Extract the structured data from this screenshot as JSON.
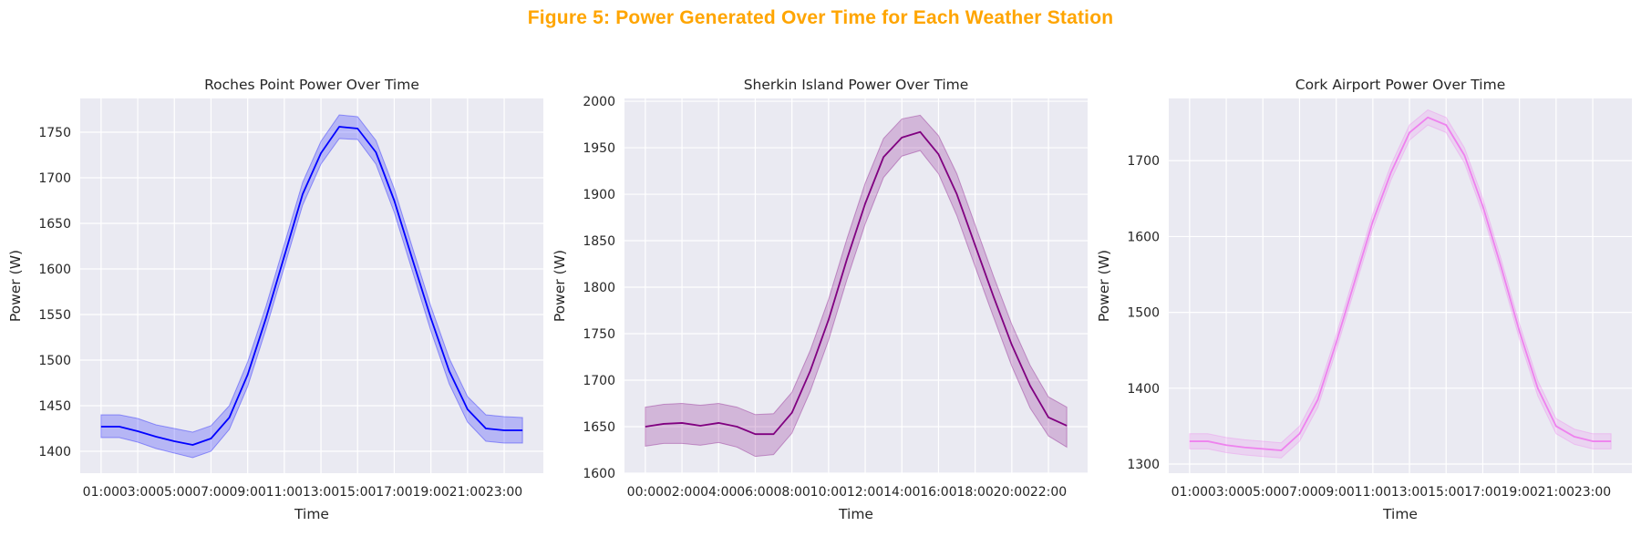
{
  "figure": {
    "title": "Figure 5: Power Generated Over Time for Each Weather Station",
    "title_color": "#ffa500",
    "background": "#eaeaf2"
  },
  "chart_data": [
    {
      "type": "line",
      "title": "Roches Point Power Over Time",
      "xlabel": "Time",
      "ylabel": "Power (W)",
      "color": "#0000ff",
      "band": "confidence interval",
      "x": [
        "01:00",
        "02:00",
        "03:00",
        "04:00",
        "05:00",
        "06:00",
        "07:00",
        "08:00",
        "09:00",
        "10:00",
        "11:00",
        "12:00",
        "13:00",
        "14:00",
        "15:00",
        "16:00",
        "17:00",
        "18:00",
        "19:00",
        "20:00",
        "21:00",
        "22:00",
        "23:00",
        "24:00"
      ],
      "x_tick_labels": [
        "01:00",
        "03:00",
        "05:00",
        "07:00",
        "09:00",
        "11:00",
        "13:00",
        "15:00",
        "17:00",
        "19:00",
        "21:00",
        "23:00"
      ],
      "y": [
        1427,
        1427,
        1422,
        1416,
        1411,
        1407,
        1414,
        1437,
        1484,
        1546,
        1614,
        1682,
        1727,
        1756,
        1754,
        1728,
        1675,
        1610,
        1546,
        1488,
        1446,
        1425,
        1423,
        1423
      ],
      "y_lower": [
        1415,
        1415,
        1410,
        1403,
        1398,
        1393,
        1400,
        1424,
        1471,
        1534,
        1602,
        1670,
        1715,
        1743,
        1742,
        1715,
        1662,
        1597,
        1532,
        1474,
        1432,
        1411,
        1409,
        1409
      ],
      "y_upper": [
        1440,
        1440,
        1436,
        1429,
        1425,
        1421,
        1428,
        1450,
        1498,
        1559,
        1627,
        1695,
        1740,
        1769,
        1767,
        1741,
        1688,
        1623,
        1559,
        1502,
        1460,
        1440,
        1438,
        1437
      ],
      "yticks": [
        1400,
        1450,
        1500,
        1550,
        1600,
        1650,
        1700,
        1750
      ],
      "ylim": [
        1376,
        1787
      ]
    },
    {
      "type": "line",
      "title": "Sherkin Island Power Over Time",
      "xlabel": "Time",
      "ylabel": "Power (W)",
      "color": "#800080",
      "band": "confidence interval",
      "x": [
        "00:00",
        "01:00",
        "02:00",
        "03:00",
        "04:00",
        "05:00",
        "06:00",
        "07:00",
        "08:00",
        "09:00",
        "10:00",
        "11:00",
        "12:00",
        "13:00",
        "14:00",
        "15:00",
        "16:00",
        "17:00",
        "18:00",
        "19:00",
        "20:00",
        "21:00",
        "22:00",
        "23:00"
      ],
      "x_tick_labels": [
        "00:00",
        "02:00",
        "04:00",
        "06:00",
        "08:00",
        "10:00",
        "12:00",
        "14:00",
        "16:00",
        "18:00",
        "20:00",
        "22:00"
      ],
      "y": [
        1650,
        1653,
        1654,
        1651,
        1654,
        1650,
        1642,
        1642,
        1665,
        1710,
        1765,
        1830,
        1890,
        1940,
        1961,
        1967,
        1943,
        1900,
        1845,
        1790,
        1738,
        1694,
        1660,
        1651
      ],
      "y_lower": [
        1629,
        1632,
        1632,
        1630,
        1633,
        1628,
        1618,
        1620,
        1643,
        1688,
        1743,
        1808,
        1868,
        1918,
        1941,
        1947,
        1922,
        1877,
        1822,
        1768,
        1715,
        1670,
        1640,
        1628
      ],
      "y_upper": [
        1671,
        1674,
        1675,
        1673,
        1675,
        1671,
        1663,
        1664,
        1687,
        1732,
        1787,
        1852,
        1912,
        1960,
        1981,
        1985,
        1963,
        1922,
        1867,
        1812,
        1760,
        1716,
        1682,
        1671
      ],
      "yticks": [
        1600,
        1650,
        1700,
        1750,
        1800,
        1850,
        1900,
        1950,
        2000
      ],
      "ylim": [
        1600,
        2003
      ]
    },
    {
      "type": "line",
      "title": "Cork Airport Power Over Time",
      "xlabel": "Time",
      "ylabel": "Power (W)",
      "color": "#ee82ee",
      "band": "confidence interval",
      "x": [
        "01:00",
        "02:00",
        "03:00",
        "04:00",
        "05:00",
        "06:00",
        "07:00",
        "08:00",
        "09:00",
        "10:00",
        "11:00",
        "12:00",
        "13:00",
        "14:00",
        "15:00",
        "16:00",
        "17:00",
        "18:00",
        "19:00",
        "20:00",
        "21:00",
        "22:00",
        "23:00",
        "24:00"
      ],
      "x_tick_labels": [
        "01:00",
        "03:00",
        "05:00",
        "07:00",
        "09:00",
        "11:00",
        "13:00",
        "15:00",
        "17:00",
        "19:00",
        "21:00",
        "23:00"
      ],
      "y": [
        1330,
        1330,
        1325,
        1322,
        1320,
        1318,
        1340,
        1385,
        1460,
        1540,
        1620,
        1685,
        1737,
        1757,
        1747,
        1707,
        1640,
        1560,
        1475,
        1400,
        1350,
        1336,
        1330,
        1330
      ],
      "y_lower": [
        1320,
        1320,
        1315,
        1312,
        1310,
        1308,
        1330,
        1375,
        1450,
        1530,
        1610,
        1675,
        1727,
        1747,
        1737,
        1697,
        1630,
        1550,
        1465,
        1390,
        1340,
        1326,
        1320,
        1320
      ],
      "y_upper": [
        1340,
        1340,
        1335,
        1332,
        1330,
        1328,
        1350,
        1395,
        1470,
        1550,
        1630,
        1695,
        1747,
        1767,
        1757,
        1717,
        1650,
        1570,
        1485,
        1410,
        1360,
        1346,
        1340,
        1340
      ],
      "yticks": [
        1300,
        1400,
        1500,
        1600,
        1700
      ],
      "ylim": [
        1288,
        1782
      ]
    }
  ]
}
